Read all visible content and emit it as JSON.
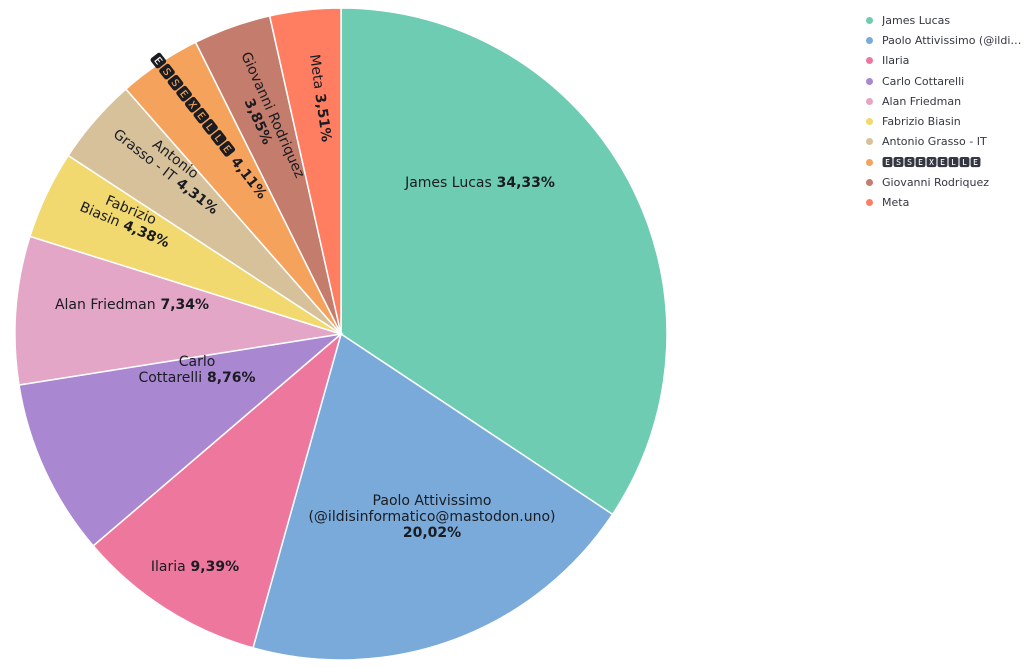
{
  "chart_data": {
    "type": "pie",
    "slices": [
      {
        "name": "James Lucas",
        "value": 34.33,
        "pct_label": "34,33%",
        "color": "#6dccb1"
      },
      {
        "name": "Paolo Attivissimo (@ildisinformatico@mastodon.uno)",
        "value": 20.02,
        "pct_label": "20,02%",
        "color": "#79aad9"
      },
      {
        "name": "Ilaria",
        "value": 9.39,
        "pct_label": "9,39%",
        "color": "#ee789d"
      },
      {
        "name": "Carlo Cottarelli",
        "value": 8.76,
        "pct_label": "8,76%",
        "color": "#a987d1"
      },
      {
        "name": "Alan Friedman",
        "value": 7.34,
        "pct_label": "7,34%",
        "color": "#e4a6c7"
      },
      {
        "name": "Fabrizio Biasin",
        "value": 4.38,
        "pct_label": "4,38%",
        "color": "#f1d86f"
      },
      {
        "name": "Antonio Grasso - IT",
        "value": 4.31,
        "pct_label": "4,31%",
        "color": "#d6c19b"
      },
      {
        "name": "🅴🆂🆂🅴🆇🅴🅻🅻🅴",
        "value": 4.11,
        "pct_label": "4,11%",
        "color": "#f5a35c"
      },
      {
        "name": "Giovanni Rodriquez",
        "value": 3.85,
        "pct_label": "3,85%",
        "color": "#c47c6c"
      },
      {
        "name": "Meta",
        "value": 3.51,
        "pct_label": "3,51%",
        "color": "#ff7e62"
      }
    ],
    "legend": {
      "position": "top-right",
      "entries": [
        "James Lucas",
        "Paolo Attivissimo (@ildis…",
        "Ilaria",
        "Carlo Cottarelli",
        "Alan Friedman",
        "Fabrizio Biasin",
        "Antonio Grasso - IT",
        "🅴🆂🆂🅴🆇🅴🅻🅻🅴",
        "Giovanni Rodriquez",
        "Meta"
      ]
    }
  }
}
